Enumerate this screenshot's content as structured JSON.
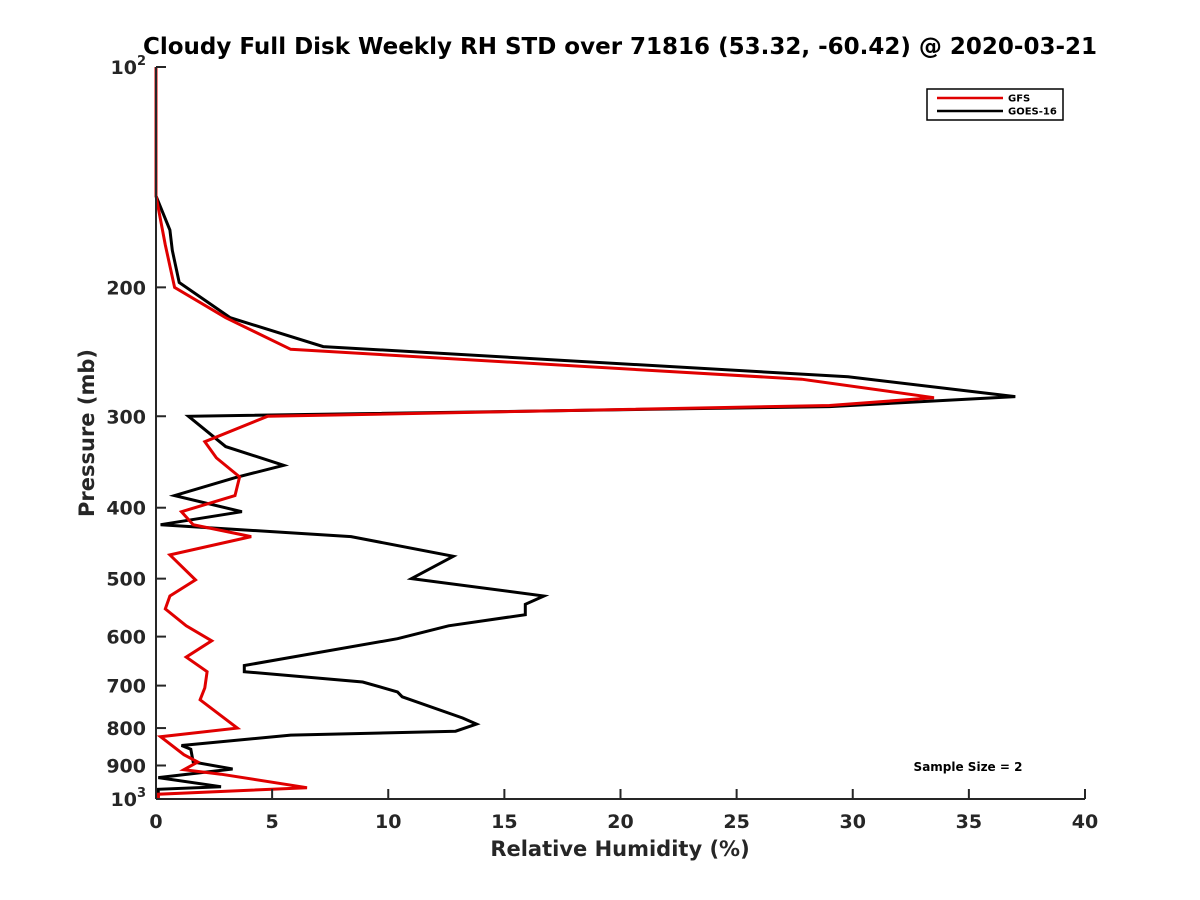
{
  "chart_data": {
    "type": "line",
    "title": "Cloudy Full Disk Weekly RH STD over 71816 (53.32, -60.42) @ 2020-03-21",
    "xlabel": "Relative Humidity (%)",
    "ylabel": "Pressure (mb)",
    "xlim": [
      0,
      40
    ],
    "ylim": [
      1000,
      100
    ],
    "yscale": "log",
    "y_reversed": true,
    "x_ticks": [
      "0",
      "5",
      "10",
      "15",
      "20",
      "25",
      "30",
      "35",
      "40"
    ],
    "y_ticks": [
      {
        "value": 100,
        "label": "10",
        "sup": "2"
      },
      {
        "value": 200,
        "label": "200"
      },
      {
        "value": 300,
        "label": "300"
      },
      {
        "value": 400,
        "label": "400"
      },
      {
        "value": 500,
        "label": "500"
      },
      {
        "value": 600,
        "label": "600"
      },
      {
        "value": 700,
        "label": "700"
      },
      {
        "value": 800,
        "label": "800"
      },
      {
        "value": 900,
        "label": "900"
      },
      {
        "value": 1000,
        "label": "10",
        "sup": "3"
      }
    ],
    "legend_position": "top-right",
    "series": [
      {
        "name": "GFS",
        "color": "#e00000",
        "points": [
          [
            0,
            100
          ],
          [
            0,
            150
          ],
          [
            0.4,
            175
          ],
          [
            0.8,
            200
          ],
          [
            3.0,
            220
          ],
          [
            5.8,
            243
          ],
          [
            27.8,
            267
          ],
          [
            33.5,
            283
          ],
          [
            29.0,
            290
          ],
          [
            4.8,
            300
          ],
          [
            2.1,
            325
          ],
          [
            2.6,
            342
          ],
          [
            3.6,
            363
          ],
          [
            3.4,
            385
          ],
          [
            1.1,
            405
          ],
          [
            1.6,
            422
          ],
          [
            4.1,
            438
          ],
          [
            0.6,
            464
          ],
          [
            1.7,
            502
          ],
          [
            0.6,
            528
          ],
          [
            0.4,
            550
          ],
          [
            1.3,
            580
          ],
          [
            2.4,
            608
          ],
          [
            1.3,
            640
          ],
          [
            2.2,
            670
          ],
          [
            2.1,
            705
          ],
          [
            1.9,
            732
          ],
          [
            3.5,
            800
          ],
          [
            0.2,
            822
          ],
          [
            1.2,
            870
          ],
          [
            1.8,
            890
          ],
          [
            1.2,
            912
          ],
          [
            2.8,
            925
          ],
          [
            6.5,
            965
          ],
          [
            0.1,
            985
          ],
          [
            0.1,
            1000
          ]
        ]
      },
      {
        "name": "GOES-16",
        "color": "#000000",
        "points": [
          [
            0,
            100
          ],
          [
            0,
            150
          ],
          [
            0.6,
            167
          ],
          [
            0.7,
            178
          ],
          [
            1.0,
            197
          ],
          [
            3.2,
            220
          ],
          [
            7.2,
            241
          ],
          [
            29.8,
            265
          ],
          [
            37.0,
            282
          ],
          [
            29.0,
            291
          ],
          [
            1.4,
            300
          ],
          [
            3.0,
            330
          ],
          [
            5.5,
            350
          ],
          [
            3.4,
            364
          ],
          [
            0.8,
            385
          ],
          [
            3.7,
            405
          ],
          [
            0.2,
            422
          ],
          [
            8.4,
            438
          ],
          [
            12.8,
            466
          ],
          [
            11.0,
            500
          ],
          [
            16.7,
            528
          ],
          [
            15.9,
            542
          ],
          [
            15.9,
            560
          ],
          [
            12.6,
            580
          ],
          [
            10.4,
            604
          ],
          [
            3.8,
            657
          ],
          [
            3.8,
            670
          ],
          [
            8.9,
            692
          ],
          [
            10.4,
            714
          ],
          [
            10.6,
            725
          ],
          [
            13.2,
            775
          ],
          [
            13.8,
            790
          ],
          [
            12.9,
            808
          ],
          [
            5.8,
            818
          ],
          [
            1.1,
            845
          ],
          [
            1.5,
            855
          ],
          [
            1.6,
            890
          ],
          [
            3.3,
            910
          ],
          [
            0.1,
            935
          ],
          [
            2.8,
            962
          ],
          [
            0.1,
            970
          ],
          [
            0.1,
            1000
          ]
        ]
      }
    ],
    "annotation": "Sample Size = 2"
  }
}
